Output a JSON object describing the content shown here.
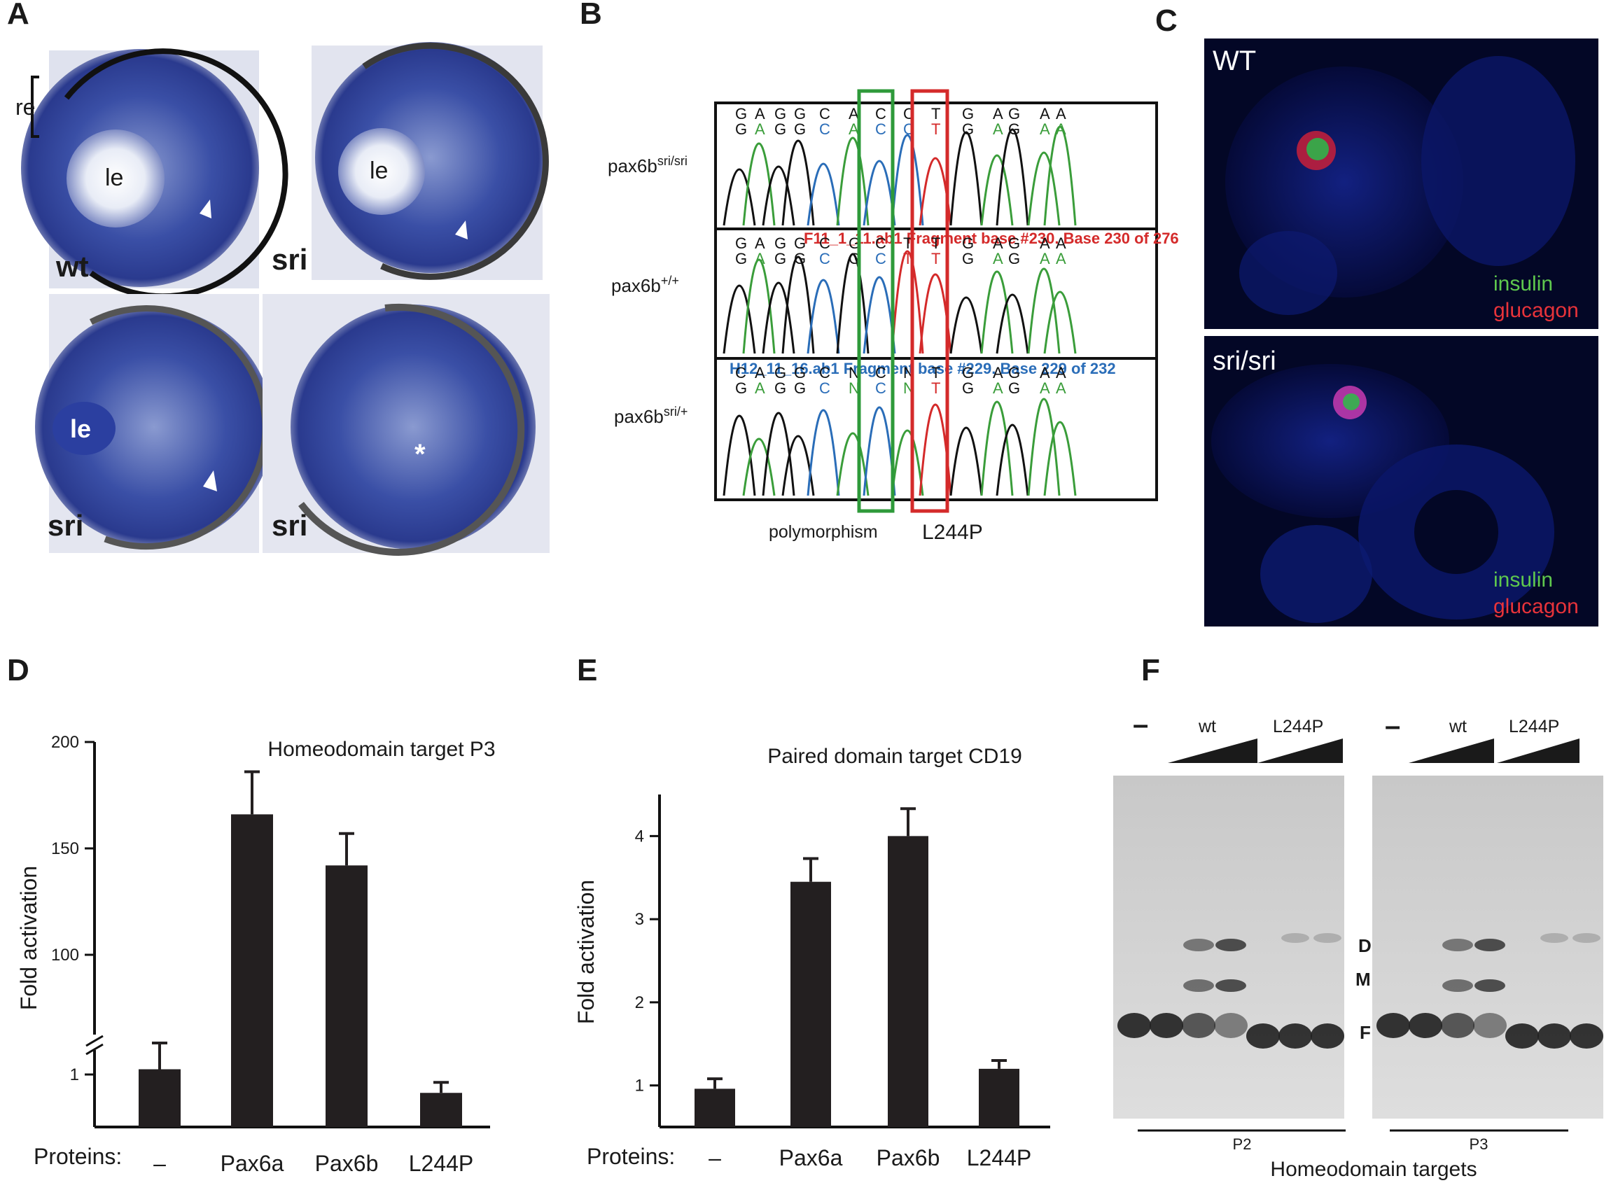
{
  "panels": {
    "A": {
      "label": "A",
      "images": [
        {
          "caption": "wt",
          "lens": "le",
          "re": "re"
        },
        {
          "caption": "sri",
          "lens": "le"
        },
        {
          "caption": "sri",
          "lens": "le"
        },
        {
          "caption": "sri",
          "marker": "*"
        }
      ]
    },
    "B": {
      "label": "B",
      "rows": [
        {
          "gene": "pax6b",
          "genotype": "sri/sri"
        },
        {
          "gene": "pax6b",
          "genotype": "+/+"
        },
        {
          "gene": "pax6b",
          "genotype": "sri/+"
        }
      ],
      "trace_headers": [
        "F11_1_11.ab1 Fragment base #230. Base 230 of 276",
        "H12_11_16.ab1 Fragment base #229. Base 229 of 232"
      ],
      "seq_top": [
        [
          "G",
          "A",
          "G",
          "G",
          "C",
          "A",
          "C",
          "C",
          "T",
          "G",
          "A",
          "G",
          "A",
          "A"
        ],
        [
          "G",
          "A",
          "G",
          "G",
          "C",
          "G",
          "C",
          "T",
          "T",
          "G",
          "A",
          "G",
          "A",
          "A"
        ],
        [
          "C",
          "A",
          "G",
          "G",
          "C",
          "N",
          "C",
          "N",
          "T",
          "G",
          "A",
          "G",
          "A",
          "A"
        ]
      ],
      "seq_bottom": [
        [
          "G",
          "A",
          "G",
          "G",
          "C",
          "A",
          "C",
          "C",
          "T",
          "G",
          "A",
          "G",
          "A",
          "A"
        ],
        [
          "G",
          "A",
          "G",
          "G",
          "C",
          "G",
          "C",
          "T",
          "T",
          "G",
          "A",
          "G",
          "A",
          "A"
        ],
        [
          "G",
          "A",
          "G",
          "G",
          "C",
          "N",
          "C",
          "N",
          "T",
          "G",
          "A",
          "G",
          "A",
          "A"
        ]
      ],
      "polymorphism_label": "polymorphism",
      "mutation_label": "L244P"
    },
    "C": {
      "label": "C",
      "images": [
        {
          "caption": "WT",
          "legend": [
            "insulin",
            "glucagon"
          ]
        },
        {
          "caption": "sri/sri",
          "legend": [
            "insulin",
            "glucagon"
          ]
        }
      ]
    },
    "F": {
      "label": "F",
      "lane_groups": [
        {
          "control": "–",
          "wt": "wt",
          "mut": "L244P",
          "target": "P2"
        },
        {
          "control": "–",
          "wt": "wt",
          "mut": "L244P",
          "target": "P3"
        }
      ],
      "bands": [
        "D",
        "M",
        "F"
      ],
      "xlabel": "Homeodomain targets"
    }
  },
  "chart_data": [
    {
      "panel": "D",
      "type": "bar",
      "title": "Homeodomain target P3",
      "ylabel": "Fold activation",
      "xlabel": "Proteins:",
      "axis_break": true,
      "categories": [
        "–",
        "Pax6a",
        "Pax6b",
        "L244P"
      ],
      "values": [
        1.1,
        166,
        142,
        0.65
      ],
      "errors": [
        0.5,
        20,
        15,
        0.2
      ],
      "yticks": [
        1,
        100,
        150,
        200
      ]
    },
    {
      "panel": "E",
      "type": "bar",
      "title": "Paired domain target CD19",
      "ylabel": "Fold activation",
      "xlabel": "Proteins:",
      "categories": [
        "–",
        "Pax6a",
        "Pax6b",
        "L244P"
      ],
      "values": [
        0.96,
        3.45,
        4.0,
        1.2
      ],
      "errors": [
        0.12,
        0.28,
        0.33,
        0.1
      ],
      "yticks": [
        1,
        2,
        3,
        4
      ],
      "ylim": [
        0.5,
        4.5
      ]
    }
  ]
}
